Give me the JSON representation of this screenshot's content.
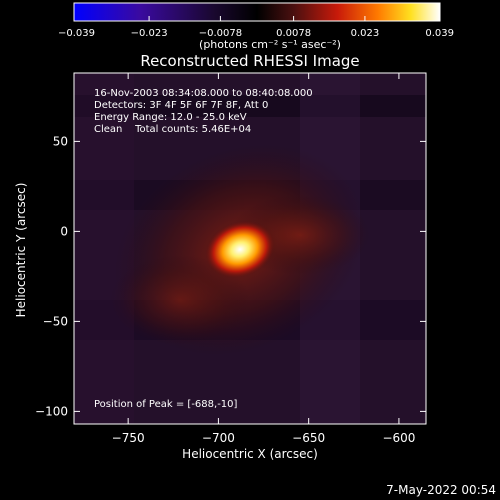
{
  "chart_data": {
    "type": "heatmap",
    "title": "Reconstructed RHESSI Image",
    "xlabel": "Heliocentric X (arcsec)",
    "ylabel": "Heliocentric Y (arcsec)",
    "xlim": [
      -780,
      -585
    ],
    "ylim": [
      -107,
      88
    ],
    "x_ticks": [
      -750,
      -700,
      -650,
      -600
    ],
    "x_tick_labels": [
      "−750",
      "−700",
      "−650",
      "−600"
    ],
    "y_ticks": [
      50,
      0,
      -50,
      -100
    ],
    "y_tick_labels": [
      "50",
      "0",
      "−50",
      "−100"
    ],
    "colorbar": {
      "range": [
        -0.039,
        0.039
      ],
      "ticks": [
        -0.039,
        -0.023,
        -0.0078,
        0.0078,
        0.023,
        0.039
      ],
      "tick_labels": [
        "−0.039",
        "−0.023",
        "−0.0078",
        "0.0078",
        "0.023",
        "0.039"
      ],
      "unit_label": "(photons cm⁻² s⁻¹ asec⁻²)"
    },
    "annotations": [
      "16-Nov-2003 08:34:08.000 to 08:40:08.000",
      "Detectors: 3F 4F 5F 6F 7F 8F, Att 0",
      "Energy Range: 12.0 - 25.0 keV",
      "Clean    Total counts: 5.46E+04"
    ],
    "peak_label": "Position of Peak = [-688,-10]",
    "peak": {
      "x": -688,
      "y": -10,
      "value": 0.039
    },
    "grid": false
  },
  "footer": {
    "timestamp": "7-May-2022 00:54"
  },
  "colors": {
    "background": "#000000",
    "axes": "#ffffff",
    "colormap": [
      "#0000ff",
      "#3a0aa0",
      "#1a0830",
      "#000000",
      "#4a1010",
      "#c81a0a",
      "#ff7a00",
      "#ffe020",
      "#ffffff"
    ]
  }
}
